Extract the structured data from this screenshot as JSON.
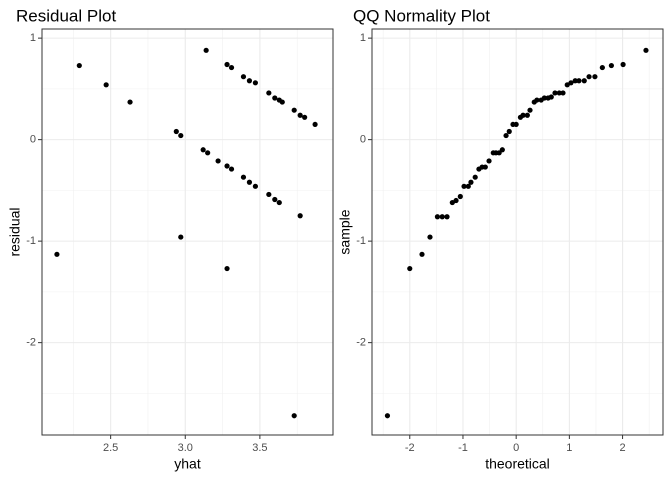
{
  "chart_data": [
    {
      "type": "scatter",
      "title": "Residual Plot",
      "x_label": "yhat",
      "y_label": "residual",
      "grid": true,
      "color": "#000000",
      "x": [
        2.14,
        2.29,
        2.47,
        2.63,
        2.94,
        2.97,
        2.97,
        3.14,
        3.12,
        3.15,
        3.22,
        3.28,
        3.31,
        3.28,
        3.31,
        3.28,
        3.39,
        3.43,
        3.47,
        3.39,
        3.43,
        3.47,
        3.56,
        3.6,
        3.63,
        3.65,
        3.56,
        3.6,
        3.63,
        3.73,
        3.77,
        3.8,
        3.87,
        3.77,
        3.73
      ],
      "y": [
        -1.13,
        0.73,
        0.54,
        0.37,
        0.08,
        0.04,
        -0.96,
        0.88,
        -0.1,
        -0.13,
        -0.21,
        0.74,
        0.71,
        -0.26,
        -0.29,
        -1.27,
        0.62,
        0.58,
        0.56,
        -0.37,
        -0.42,
        -0.46,
        0.46,
        0.41,
        0.39,
        0.37,
        -0.54,
        -0.59,
        -0.62,
        0.29,
        0.24,
        0.22,
        0.15,
        -0.75,
        -2.72
      ],
      "xlim": [
        2.04,
        3.99
      ],
      "ylim": [
        -2.91,
        1.09
      ],
      "xticks": [
        {
          "value": 2.5,
          "label": "2.5"
        },
        {
          "value": 3,
          "label": "3.0"
        },
        {
          "value": 3.5,
          "label": "3.5"
        }
      ],
      "yticks": [
        -2,
        -1,
        0,
        1
      ]
    },
    {
      "type": "scatter",
      "title": "QQ Normality Plot",
      "x_label": "theoretical",
      "y_label": "sample",
      "grid": true,
      "color": "#000000",
      "x": [
        -2.42,
        -2.0,
        -1.77,
        -1.62,
        -1.48,
        -1.39,
        -1.3,
        -1.2,
        -1.13,
        -1.05,
        -0.98,
        -0.9,
        -0.85,
        -0.77,
        -0.7,
        -0.64,
        -0.58,
        -0.51,
        -0.43,
        -0.38,
        -0.32,
        -0.26,
        -0.19,
        -0.13,
        -0.06,
        0,
        0.08,
        0.13,
        0.21,
        0.26,
        0.34,
        0.39,
        0.47,
        0.53,
        0.6,
        0.66,
        0.73,
        0.81,
        0.88,
        0.96,
        1.03,
        1.11,
        1.18,
        1.28,
        1.37,
        1.48,
        1.62,
        1.79,
        2.01,
        2.44
      ],
      "y": [
        -2.72,
        -1.27,
        -1.13,
        -0.96,
        -0.76,
        -0.76,
        -0.76,
        -0.62,
        -0.6,
        -0.56,
        -0.46,
        -0.46,
        -0.42,
        -0.37,
        -0.29,
        -0.27,
        -0.27,
        -0.21,
        -0.13,
        -0.13,
        -0.13,
        -0.1,
        0.04,
        0.08,
        0.15,
        0.15,
        0.22,
        0.24,
        0.24,
        0.29,
        0.37,
        0.39,
        0.39,
        0.41,
        0.41,
        0.42,
        0.46,
        0.46,
        0.46,
        0.54,
        0.56,
        0.58,
        0.58,
        0.58,
        0.62,
        0.62,
        0.71,
        0.73,
        0.74,
        0.88
      ],
      "xlim": [
        -2.71,
        2.76
      ],
      "ylim": [
        -2.91,
        1.09
      ],
      "xticks": [
        -2,
        -1,
        0,
        1,
        2
      ],
      "yticks": [
        -2,
        -1,
        0,
        1
      ]
    }
  ]
}
